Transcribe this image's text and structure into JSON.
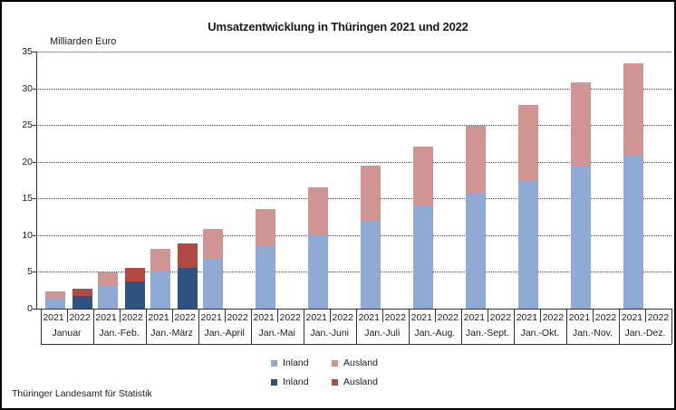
{
  "title": "Umsatzentwicklung in Thüringen 2021 und 2022",
  "y_axis_unit": "Milliarden Euro",
  "footer": "Thüringer Landesamt für Statistik",
  "legend": [
    {
      "label": "Inland",
      "color": "#8FAAD4"
    },
    {
      "label": "Ausland",
      "color": "#D09492"
    },
    {
      "label": "Inland",
      "color": "#2E5381"
    },
    {
      "label": "Ausland",
      "color": "#B04A45"
    }
  ],
  "chart_data": {
    "type": "bar",
    "stacked": true,
    "title": "Umsatzentwicklung in Thüringen 2021 und 2022",
    "ylabel": "Milliarden Euro",
    "ylim": [
      0,
      35
    ],
    "yticks": [
      0,
      5,
      10,
      15,
      20,
      25,
      30,
      35
    ],
    "grid": "horizontal-dotted",
    "legend_position": "bottom",
    "categories": [
      "Januar",
      "Jan.-Feb.",
      "Jan.-März",
      "Jan.-April",
      "Jan.-Mai",
      "Jan.-Juni",
      "Jan.-Juli",
      "Jan.-Aug.",
      "Jan.-Sept.",
      "Jan.-Okt.",
      "Jan.-Nov.",
      "Jan.-Dez."
    ],
    "group_years": [
      "2021",
      "2022"
    ],
    "series": [
      {
        "name": "Inland",
        "year": "2021",
        "stack": "2021",
        "color": "#8FAAD4",
        "values": [
          1.4,
          3.2,
          5.1,
          6.9,
          8.5,
          10.1,
          12.0,
          13.9,
          15.7,
          17.4,
          19.4,
          21.0
        ]
      },
      {
        "name": "Ausland",
        "year": "2021",
        "stack": "2021",
        "color": "#D09492",
        "values": [
          1.0,
          1.7,
          3.0,
          3.9,
          5.0,
          6.4,
          7.5,
          8.2,
          9.2,
          10.3,
          11.4,
          12.4
        ]
      },
      {
        "name": "Inland",
        "year": "2022",
        "stack": "2022",
        "color": "#2E5381",
        "values": [
          1.7,
          3.7,
          5.6,
          null,
          null,
          null,
          null,
          null,
          null,
          null,
          null,
          null
        ]
      },
      {
        "name": "Ausland",
        "year": "2022",
        "stack": "2022",
        "color": "#B04A45",
        "values": [
          1.0,
          1.8,
          3.3,
          null,
          null,
          null,
          null,
          null,
          null,
          null,
          null,
          null
        ]
      }
    ],
    "stack_totals": {
      "2021": [
        2.4,
        4.9,
        8.1,
        10.8,
        13.5,
        16.5,
        19.5,
        22.1,
        24.9,
        27.7,
        30.8,
        33.4
      ],
      "2022": [
        2.7,
        5.5,
        8.9,
        null,
        null,
        null,
        null,
        null,
        null,
        null,
        null,
        null
      ]
    }
  }
}
